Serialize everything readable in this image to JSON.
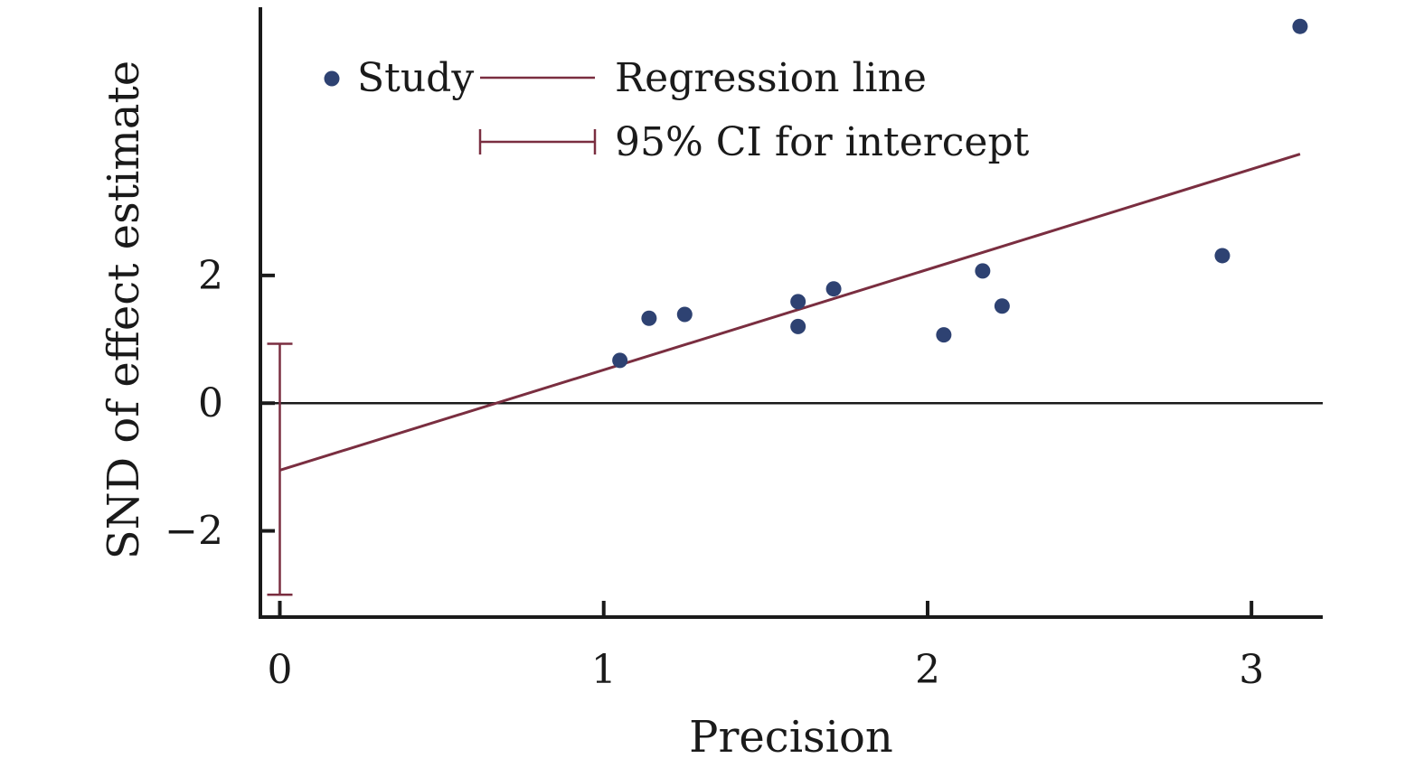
{
  "chart_data": {
    "type": "scatter",
    "title": "",
    "xlabel": "Precision",
    "ylabel": "SND of effect estimate",
    "xlim": [
      -0.06,
      3.22
    ],
    "ylim": [
      -3.35,
      6.2
    ],
    "x_ticks": [
      {
        "value": 0,
        "label": "0"
      },
      {
        "value": 1,
        "label": "1"
      },
      {
        "value": 2,
        "label": "2"
      },
      {
        "value": 3,
        "label": "3"
      }
    ],
    "y_ticks": [
      {
        "value": -2,
        "label": "−2"
      },
      {
        "value": 0,
        "label": "0"
      },
      {
        "value": 2,
        "label": "2"
      }
    ],
    "grid": false,
    "legend_position": "top-left",
    "legend": {
      "study": "Study",
      "regression": "Regression line",
      "ci": "95% CI for intercept"
    },
    "colors": {
      "points": "#2e4272",
      "regression": "#7a2e40",
      "ci": "#7a2e40",
      "axis": "#1a1a1a"
    },
    "series": [
      {
        "type": "scatter",
        "points": [
          {
            "x": 1.05,
            "y": 0.67
          },
          {
            "x": 1.14,
            "y": 1.33
          },
          {
            "x": 1.25,
            "y": 1.39
          },
          {
            "x": 1.6,
            "y": 1.59
          },
          {
            "x": 1.6,
            "y": 1.2
          },
          {
            "x": 1.71,
            "y": 1.79
          },
          {
            "x": 2.05,
            "y": 1.07
          },
          {
            "x": 2.17,
            "y": 2.07
          },
          {
            "x": 2.23,
            "y": 1.52
          },
          {
            "x": 2.91,
            "y": 2.31
          },
          {
            "x": 3.15,
            "y": 5.9
          }
        ]
      },
      {
        "type": "line",
        "points": [
          {
            "x": 0,
            "y": -1.05
          },
          {
            "x": 3.15,
            "y": 3.9
          }
        ]
      }
    ],
    "intercept_ci": {
      "x": 0,
      "low": -3.0,
      "high": 0.93
    },
    "reference_line_y": 0
  }
}
